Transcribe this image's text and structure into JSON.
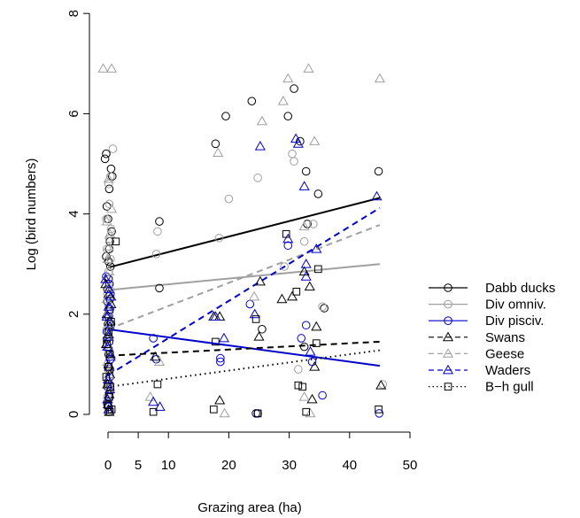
{
  "chart_data": {
    "type": "scatter",
    "xlabel": "Grazing area (ha)",
    "ylabel": "Log (bird numbers)",
    "xlim": [
      -3,
      50
    ],
    "ylim": [
      0,
      8
    ],
    "x_ticks": [
      0,
      5,
      10,
      20,
      30,
      40,
      50
    ],
    "x_tick_labels": [
      "0",
      "5",
      "10",
      "20",
      "30",
      "40",
      "50"
    ],
    "y_ticks": [
      0,
      2,
      4,
      6,
      8
    ],
    "y_tick_labels": [
      "0",
      "2",
      "4",
      "6",
      "8"
    ],
    "legend_position": "right",
    "series": [
      {
        "name": "Dabb ducks",
        "color": "#000000",
        "marker": "circle",
        "line": "solid",
        "fit": [
          [
            0,
            2.93
          ],
          [
            45,
            4.32
          ]
        ],
        "points": [
          [
            -0.5,
            5.1
          ],
          [
            -0.3,
            5.2
          ],
          [
            0.5,
            4.9
          ],
          [
            0.7,
            4.75
          ],
          [
            0.2,
            4.5
          ],
          [
            -0.2,
            4.15
          ],
          [
            0,
            3.9
          ],
          [
            0.6,
            3.65
          ],
          [
            0.3,
            3.45
          ],
          [
            0.2,
            3.3
          ],
          [
            -0.3,
            3.15
          ],
          [
            0.1,
            3.05
          ],
          [
            0.4,
            2.95
          ],
          [
            0.1,
            2.7
          ],
          [
            -0.1,
            2.5
          ],
          [
            0.3,
            2.3
          ],
          [
            0.2,
            2.05
          ],
          [
            0,
            1.8
          ],
          [
            -0.2,
            1.5
          ],
          [
            0.1,
            1.2
          ],
          [
            0.3,
            0.9
          ],
          [
            0,
            0.6
          ],
          [
            0.2,
            0.4
          ],
          [
            -0.1,
            0.2
          ],
          [
            0.1,
            0.05
          ],
          [
            8.5,
            3.85
          ],
          [
            8.5,
            2.52
          ],
          [
            17.8,
            5.4
          ],
          [
            19.5,
            5.95
          ],
          [
            23.8,
            6.25
          ],
          [
            30.8,
            6.5
          ],
          [
            29.8,
            5.95
          ],
          [
            31.8,
            5.45
          ],
          [
            32.8,
            4.85
          ],
          [
            34.8,
            4.4
          ],
          [
            44.8,
            4.85
          ],
          [
            33,
            3.8
          ],
          [
            35.8,
            2.12
          ],
          [
            25.5,
            1.7
          ],
          [
            24.5,
            0.02
          ],
          [
            32.5,
            1.35
          ]
        ]
      },
      {
        "name": "Div omniv.",
        "color": "#a0a0a0",
        "marker": "circle",
        "line": "solid",
        "fit": [
          [
            0,
            2.48
          ],
          [
            45,
            3.0
          ]
        ],
        "points": [
          [
            0.8,
            5.3
          ],
          [
            0.4,
            4.75
          ],
          [
            0.1,
            4.6
          ],
          [
            0.2,
            4.2
          ],
          [
            -0.3,
            3.9
          ],
          [
            0.5,
            3.7
          ],
          [
            0.2,
            3.5
          ],
          [
            -0.2,
            3.3
          ],
          [
            0.4,
            3.1
          ],
          [
            0.1,
            2.85
          ],
          [
            0.3,
            2.6
          ],
          [
            -0.1,
            2.4
          ],
          [
            0.1,
            2.15
          ],
          [
            0.2,
            1.95
          ],
          [
            -0.2,
            1.7
          ],
          [
            0.1,
            1.45
          ],
          [
            0.3,
            1.15
          ],
          [
            0,
            0.9
          ],
          [
            0.2,
            0.6
          ],
          [
            -0.1,
            0.35
          ],
          [
            0.1,
            0.1
          ],
          [
            8.2,
            3.65
          ],
          [
            8,
            3.2
          ],
          [
            18.4,
            3.52
          ],
          [
            20,
            4.3
          ],
          [
            24.8,
            4.72
          ],
          [
            30.5,
            5.2
          ],
          [
            30.8,
            5.05
          ],
          [
            34,
            3.8
          ],
          [
            32.5,
            3.45
          ],
          [
            29.2,
            2.95
          ],
          [
            35.5,
            2.15
          ],
          [
            31.5,
            0.9
          ],
          [
            45.5,
            0.6
          ]
        ]
      },
      {
        "name": "Div pisciv.",
        "color": "#0000cc",
        "marker": "circle",
        "line": "solid",
        "fit": [
          [
            0,
            1.7
          ],
          [
            45,
            0.97
          ]
        ],
        "points": [
          [
            -0.3,
            2.75
          ],
          [
            0.2,
            2.6
          ],
          [
            0.4,
            2.4
          ],
          [
            -0.1,
            2.25
          ],
          [
            0.3,
            2.1
          ],
          [
            0.1,
            1.95
          ],
          [
            0.5,
            1.8
          ],
          [
            -0.2,
            1.65
          ],
          [
            0.2,
            1.45
          ],
          [
            0.1,
            1.3
          ],
          [
            0.4,
            1.1
          ],
          [
            0,
            0.95
          ],
          [
            0.3,
            0.75
          ],
          [
            -0.1,
            0.55
          ],
          [
            0.2,
            0.35
          ],
          [
            0.1,
            0.15
          ],
          [
            7.5,
            1.52
          ],
          [
            8,
            1.1
          ],
          [
            18.6,
            1.05
          ],
          [
            18.6,
            1.12
          ],
          [
            23.5,
            2.2
          ],
          [
            29.8,
            3.37
          ],
          [
            32,
            1.52
          ],
          [
            32.8,
            1.78
          ],
          [
            33.8,
            1.05
          ],
          [
            35.5,
            0.38
          ],
          [
            24.8,
            0.02
          ],
          [
            44.9,
            0.02
          ]
        ]
      },
      {
        "name": "Swans",
        "color": "#000000",
        "marker": "triangle",
        "line": "dashed",
        "fit": [
          [
            0,
            1.17
          ],
          [
            45,
            1.45
          ]
        ],
        "points": [
          [
            -0.4,
            2.6
          ],
          [
            0.1,
            2.4
          ],
          [
            0.5,
            2.2
          ],
          [
            -0.2,
            2.0
          ],
          [
            0.3,
            1.85
          ],
          [
            0.1,
            1.6
          ],
          [
            -0.3,
            1.4
          ],
          [
            0.4,
            1.2
          ],
          [
            0.1,
            1.0
          ],
          [
            0.3,
            0.8
          ],
          [
            -0.1,
            0.6
          ],
          [
            0.2,
            0.4
          ],
          [
            0,
            0.2
          ],
          [
            0.2,
            0.05
          ],
          [
            7.8,
            1.15
          ],
          [
            17.5,
            1.95
          ],
          [
            18.5,
            0.28
          ],
          [
            18.5,
            1.95
          ],
          [
            25,
            1.55
          ],
          [
            25.2,
            2.65
          ],
          [
            28.8,
            2.3
          ],
          [
            30.5,
            2.35
          ],
          [
            32.5,
            2.85
          ],
          [
            33.4,
            2.55
          ],
          [
            33.8,
            0.3
          ],
          [
            34.5,
            1.75
          ],
          [
            34.2,
            0.95
          ],
          [
            45.2,
            0.58
          ]
        ]
      },
      {
        "name": "Geese",
        "color": "#a0a0a0",
        "marker": "triangle",
        "line": "dashed",
        "fit": [
          [
            0,
            1.7
          ],
          [
            45,
            3.78
          ]
        ],
        "points": [
          [
            -0.8,
            6.9
          ],
          [
            0.6,
            6.9
          ],
          [
            0.1,
            4.7
          ],
          [
            0.6,
            4.1
          ],
          [
            -0.2,
            3.85
          ],
          [
            0.3,
            3.6
          ],
          [
            0.1,
            3.35
          ],
          [
            -0.1,
            3.1
          ],
          [
            0.2,
            2.85
          ],
          [
            0.3,
            2.55
          ],
          [
            -0.2,
            2.3
          ],
          [
            0.1,
            2.05
          ],
          [
            0.3,
            1.8
          ],
          [
            0,
            1.55
          ],
          [
            0.2,
            1.3
          ],
          [
            -0.1,
            1.05
          ],
          [
            0.1,
            0.8
          ],
          [
            0.3,
            0.55
          ],
          [
            0,
            0.3
          ],
          [
            0.2,
            0.08
          ],
          [
            8.5,
            1.05
          ],
          [
            7,
            0.35
          ],
          [
            19.3,
            0.02
          ],
          [
            18.2,
            5.22
          ],
          [
            25.5,
            5.85
          ],
          [
            29.8,
            6.7
          ],
          [
            29,
            6.25
          ],
          [
            33.2,
            6.9
          ],
          [
            34.2,
            5.45
          ],
          [
            32.5,
            3.75
          ],
          [
            24.2,
            2.35
          ],
          [
            32.5,
            0.35
          ],
          [
            33.5,
            0.02
          ],
          [
            45,
            6.7
          ]
        ]
      },
      {
        "name": "Waders",
        "color": "#0000cc",
        "marker": "triangle",
        "line": "dashed",
        "fit": [
          [
            0,
            0.78
          ],
          [
            45,
            4.12
          ]
        ],
        "points": [
          [
            -0.4,
            2.7
          ],
          [
            0.2,
            2.5
          ],
          [
            0.5,
            2.35
          ],
          [
            0.1,
            2.15
          ],
          [
            -0.2,
            1.95
          ],
          [
            0.3,
            1.75
          ],
          [
            0.1,
            1.55
          ],
          [
            -0.1,
            1.35
          ],
          [
            0.4,
            1.15
          ],
          [
            0.2,
            0.95
          ],
          [
            0,
            0.7
          ],
          [
            0.3,
            0.5
          ],
          [
            -0.1,
            0.3
          ],
          [
            0.1,
            0.1
          ],
          [
            7.5,
            0.25
          ],
          [
            8.6,
            0.15
          ],
          [
            17.8,
            1.95
          ],
          [
            19.2,
            1.52
          ],
          [
            24.3,
            2.0
          ],
          [
            25.2,
            5.35
          ],
          [
            31.1,
            5.5
          ],
          [
            31.5,
            5.4
          ],
          [
            32.5,
            4.55
          ],
          [
            32.8,
            3.0
          ],
          [
            34.5,
            3.3
          ],
          [
            29.8,
            3.5
          ],
          [
            32.8,
            2.75
          ],
          [
            33.5,
            1.25
          ],
          [
            44.5,
            4.35
          ]
        ]
      },
      {
        "name": "B−h gull",
        "color": "#000000",
        "marker": "square",
        "line": "dotted",
        "fit": [
          [
            0,
            0.55
          ],
          [
            45,
            1.28
          ]
        ],
        "points": [
          [
            1.3,
            3.45
          ],
          [
            0.5,
            1.85
          ],
          [
            0.1,
            1.65
          ],
          [
            -0.2,
            1.4
          ],
          [
            0.3,
            1.2
          ],
          [
            0.1,
            0.95
          ],
          [
            -0.3,
            0.75
          ],
          [
            0.4,
            0.55
          ],
          [
            0.2,
            0.35
          ],
          [
            0,
            0.18
          ],
          [
            0.3,
            0.05
          ],
          [
            0.6,
            0.1
          ],
          [
            8.2,
            0.6
          ],
          [
            7.5,
            0.05
          ],
          [
            17.8,
            1.45
          ],
          [
            17.5,
            0.1
          ],
          [
            24.5,
            1.9
          ],
          [
            24.8,
            0.02
          ],
          [
            29.5,
            3.6
          ],
          [
            31.2,
            2.45
          ],
          [
            31.5,
            0.58
          ],
          [
            32.8,
            0.05
          ],
          [
            32.2,
            0.55
          ],
          [
            34.8,
            2.9
          ],
          [
            34.5,
            1.42
          ],
          [
            44.8,
            0.1
          ]
        ]
      }
    ]
  }
}
